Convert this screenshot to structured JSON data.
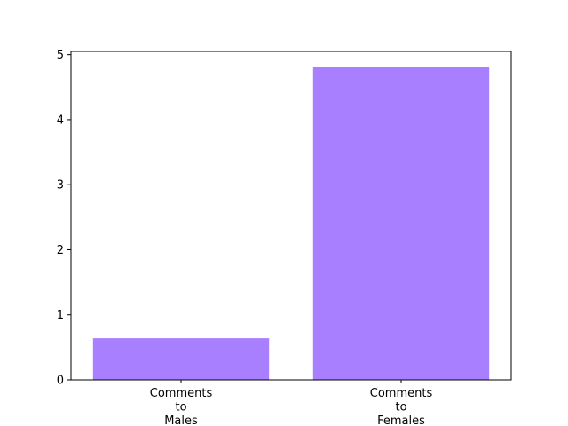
{
  "chart_data": {
    "type": "bar",
    "categories": [
      [
        "Comments",
        "to",
        "Males"
      ],
      [
        "Comments",
        "to",
        "Females"
      ]
    ],
    "values": [
      0.64,
      4.81
    ],
    "ylim": [
      0,
      5.05
    ],
    "yticks": [
      0,
      1,
      2,
      3,
      4,
      5
    ],
    "bar_color": "#a87fff",
    "grid": false,
    "title": "",
    "xlabel": "",
    "ylabel": ""
  }
}
